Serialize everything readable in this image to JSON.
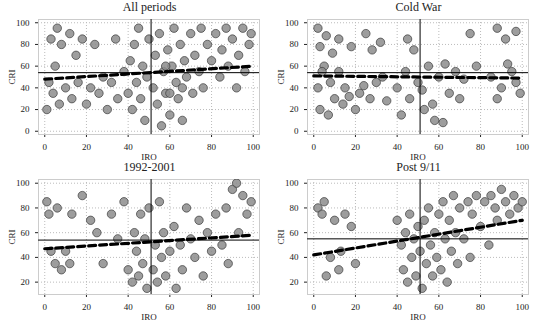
{
  "chart_data": [
    {
      "type": "scatter",
      "title": "All periods",
      "x_label": "IRO",
      "y_label": "CRI",
      "xlim": [
        -3,
        103
      ],
      "ylim": [
        -3,
        103
      ],
      "xticks": [
        0,
        20,
        40,
        60,
        80,
        100
      ],
      "yticks": [
        0,
        20,
        40,
        60,
        80,
        100
      ],
      "grid": true,
      "series": [
        {
          "type": "scatter",
          "color": "#8c8c8c",
          "marker": "circle",
          "x": [
            1,
            2,
            3,
            4,
            5,
            6,
            7,
            8,
            10,
            12,
            13,
            15,
            16,
            18,
            20,
            22,
            24,
            26,
            28,
            30,
            32,
            34,
            35,
            38,
            40,
            41,
            42,
            43,
            44,
            45,
            46,
            47,
            48,
            49,
            50,
            52,
            53,
            54,
            55,
            56,
            57,
            58,
            59,
            60,
            61,
            62,
            63,
            64,
            65,
            66,
            67,
            68,
            70,
            71,
            72,
            74,
            75,
            76,
            78,
            80,
            82,
            84,
            85,
            87,
            88,
            90,
            92,
            93,
            95,
            96,
            98,
            99,
            60,
            66,
            58
          ],
          "values": [
            20,
            45,
            85,
            35,
            60,
            95,
            25,
            80,
            40,
            90,
            30,
            70,
            45,
            85,
            25,
            40,
            80,
            35,
            50,
            20,
            45,
            85,
            30,
            55,
            35,
            65,
            20,
            80,
            45,
            95,
            30,
            60,
            10,
            50,
            85,
            40,
            70,
            25,
            90,
            5,
            55,
            35,
            75,
            15,
            60,
            95,
            45,
            30,
            80,
            10,
            65,
            50,
            90,
            35,
            70,
            55,
            95,
            40,
            80,
            65,
            90,
            50,
            75,
            95,
            60,
            85,
            40,
            70,
            95,
            55,
            80,
            90,
            35,
            40,
            60
          ]
        },
        {
          "type": "line",
          "color": "#000000",
          "line_style": "dashed",
          "x": [
            0,
            100
          ],
          "values": [
            48,
            60
          ]
        },
        {
          "type": "line",
          "color": "#000000",
          "line_style": "solid",
          "x": [
            51,
            51
          ],
          "values": [
            -3,
            103
          ]
        },
        {
          "type": "line",
          "color": "#000000",
          "line_style": "solid",
          "x": [
            -3,
            103
          ],
          "values": [
            54,
            54
          ]
        }
      ]
    },
    {
      "type": "scatter",
      "title": "Cold War",
      "x_label": "IRO",
      "y_label": "CRI",
      "xlim": [
        -3,
        103
      ],
      "ylim": [
        -3,
        103
      ],
      "xticks": [
        0,
        20,
        40,
        60,
        80,
        100
      ],
      "yticks": [
        0,
        20,
        40,
        60,
        80,
        100
      ],
      "grid": true,
      "series": [
        {
          "type": "scatter",
          "color": "#8c8c8c",
          "marker": "circle",
          "x": [
            2,
            3,
            5,
            6,
            8,
            10,
            12,
            14,
            15,
            18,
            20,
            22,
            25,
            27,
            30,
            32,
            35,
            3,
            7,
            12,
            17,
            24,
            28,
            33,
            40,
            42,
            44,
            46,
            48,
            50,
            52,
            55,
            57,
            60,
            62,
            65,
            68,
            70,
            72,
            75,
            78,
            85,
            88,
            90,
            92,
            95,
            97,
            99,
            45,
            53,
            58,
            63,
            88,
            93,
            97,
            2,
            4,
            9
          ],
          "values": [
            95,
            78,
            60,
            88,
            45,
            30,
            85,
            25,
            40,
            78,
            20,
            35,
            90,
            30,
            45,
            82,
            28,
            20,
            15,
            55,
            32,
            42,
            75,
            50,
            40,
            15,
            55,
            30,
            75,
            45,
            38,
            60,
            25,
            50,
            8,
            35,
            55,
            30,
            48,
            90,
            60,
            50,
            95,
            40,
            85,
            55,
            92,
            35,
            85,
            20,
            10,
            62,
            30,
            62,
            45,
            40,
            55,
            72
          ]
        },
        {
          "type": "line",
          "color": "#000000",
          "line_style": "dashed",
          "x": [
            0,
            100
          ],
          "values": [
            51,
            49
          ]
        },
        {
          "type": "line",
          "color": "#000000",
          "line_style": "solid",
          "x": [
            51,
            51
          ],
          "values": [
            -3,
            103
          ]
        },
        {
          "type": "line",
          "color": "#000000",
          "line_style": "solid",
          "x": [
            -3,
            103
          ],
          "values": [
            54,
            54
          ]
        }
      ]
    },
    {
      "type": "scatter",
      "title": "1992-2001",
      "x_label": "IRO",
      "y_label": "CRI",
      "xlim": [
        -3,
        103
      ],
      "ylim": [
        10,
        103
      ],
      "xticks": [
        0,
        20,
        40,
        60,
        80,
        100
      ],
      "yticks": [
        20,
        40,
        60,
        80,
        100
      ],
      "grid": true,
      "series": [
        {
          "type": "scatter",
          "color": "#8c8c8c",
          "marker": "circle",
          "x": [
            1,
            2,
            3,
            5,
            6,
            8,
            10,
            12,
            13,
            18,
            22,
            25,
            28,
            32,
            35,
            38,
            40,
            42,
            43,
            44,
            45,
            46,
            47,
            48,
            49,
            50,
            52,
            53,
            54,
            55,
            56,
            57,
            58,
            60,
            62,
            63,
            65,
            66,
            68,
            70,
            72,
            74,
            76,
            78,
            80,
            82,
            85,
            87,
            88,
            90,
            92,
            93,
            95,
            97,
            99
          ],
          "values": [
            85,
            75,
            45,
            35,
            80,
            30,
            45,
            35,
            75,
            90,
            70,
            60,
            35,
            75,
            55,
            85,
            30,
            20,
            60,
            45,
            25,
            75,
            35,
            55,
            15,
            80,
            30,
            50,
            20,
            85,
            40,
            60,
            25,
            45,
            65,
            15,
            50,
            30,
            80,
            55,
            40,
            70,
            25,
            60,
            45,
            75,
            50,
            80,
            35,
            95,
            100,
            60,
            90,
            75,
            85
          ]
        },
        {
          "type": "line",
          "color": "#000000",
          "line_style": "dashed",
          "x": [
            0,
            100
          ],
          "values": [
            47,
            58
          ]
        },
        {
          "type": "line",
          "color": "#000000",
          "line_style": "solid",
          "x": [
            51,
            51
          ],
          "values": [
            10,
            103
          ]
        },
        {
          "type": "line",
          "color": "#000000",
          "line_style": "solid",
          "x": [
            -3,
            103
          ],
          "values": [
            54,
            54
          ]
        }
      ]
    },
    {
      "type": "scatter",
      "title": "Post 9/11",
      "x_label": "IRO",
      "y_label": "CRI",
      "xlim": [
        -3,
        103
      ],
      "ylim": [
        10,
        103
      ],
      "xticks": [
        0,
        20,
        40,
        60,
        80,
        100
      ],
      "yticks": [
        20,
        40,
        60,
        80,
        100
      ],
      "grid": true,
      "series": [
        {
          "type": "scatter",
          "color": "#8c8c8c",
          "marker": "circle",
          "x": [
            2,
            4,
            5,
            6,
            8,
            10,
            12,
            13,
            15,
            18,
            20,
            40,
            42,
            43,
            44,
            45,
            46,
            47,
            48,
            49,
            50,
            51,
            52,
            53,
            54,
            55,
            56,
            57,
            58,
            59,
            60,
            61,
            62,
            63,
            64,
            65,
            66,
            67,
            68,
            69,
            70,
            72,
            74,
            75,
            76,
            78,
            80,
            82,
            84,
            85,
            87,
            88,
            90,
            92,
            94,
            96,
            98,
            100
          ],
          "values": [
            80,
            75,
            85,
            25,
            40,
            70,
            30,
            45,
            75,
            65,
            35,
            70,
            50,
            30,
            60,
            20,
            75,
            40,
            55,
            25,
            65,
            45,
            15,
            70,
            35,
            80,
            50,
            25,
            60,
            40,
            75,
            30,
            85,
            55,
            20,
            70,
            45,
            90,
            60,
            35,
            80,
            55,
            85,
            40,
            75,
            90,
            65,
            85,
            50,
            90,
            80,
            70,
            95,
            85,
            75,
            90,
            80,
            85
          ]
        },
        {
          "type": "line",
          "color": "#000000",
          "line_style": "dashed",
          "x": [
            0,
            100
          ],
          "values": [
            42,
            70
          ]
        },
        {
          "type": "line",
          "color": "#000000",
          "line_style": "solid",
          "x": [
            51,
            51
          ],
          "values": [
            10,
            103
          ]
        },
        {
          "type": "line",
          "color": "#000000",
          "line_style": "solid",
          "x": [
            -3,
            103
          ],
          "values": [
            55,
            55
          ]
        }
      ]
    }
  ]
}
